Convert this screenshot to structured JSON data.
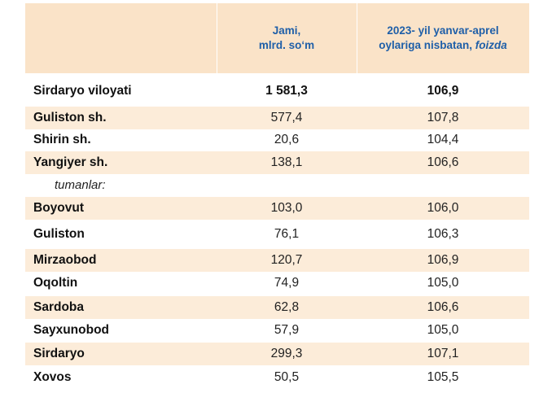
{
  "header": {
    "col1_line1": "Jami,",
    "col1_line2": "mlrd. so‘m",
    "col2_line1": "2023- yil yanvar-aprel",
    "col2_line2": "oylariga nisbatan, ",
    "col2_unit": "foizda"
  },
  "rows": [
    {
      "name": "Sirdaryo viloyati",
      "total": "1 581,3",
      "pct": "106,9"
    },
    {
      "name": "Guliston  sh.",
      "total": "577,4",
      "pct": "107,8"
    },
    {
      "name": "Shirin sh.",
      "total": "20,6",
      "pct": "104,4"
    },
    {
      "name": "Yangiyer sh.",
      "total": "138,1",
      "pct": "106,6"
    },
    {
      "name": "tumanlar:"
    },
    {
      "name": "Boyovut",
      "total": "103,0",
      "pct": "106,0"
    },
    {
      "name": "Guliston",
      "total": "76,1",
      "pct": "106,3"
    },
    {
      "name": "Mirzaobod",
      "total": "120,7",
      "pct": "106,9"
    },
    {
      "name": "Oqoltin",
      "total": "74,9",
      "pct": "105,0"
    },
    {
      "name": "Sardoba",
      "total": "62,8",
      "pct": "106,6"
    },
    {
      "name": "Sayxunobod",
      "total": "57,9",
      "pct": "105,0"
    },
    {
      "name": "Sirdaryo",
      "total": "299,3",
      "pct": "107,1"
    },
    {
      "name": "Xovos",
      "total": "50,5",
      "pct": "105,5"
    }
  ]
}
